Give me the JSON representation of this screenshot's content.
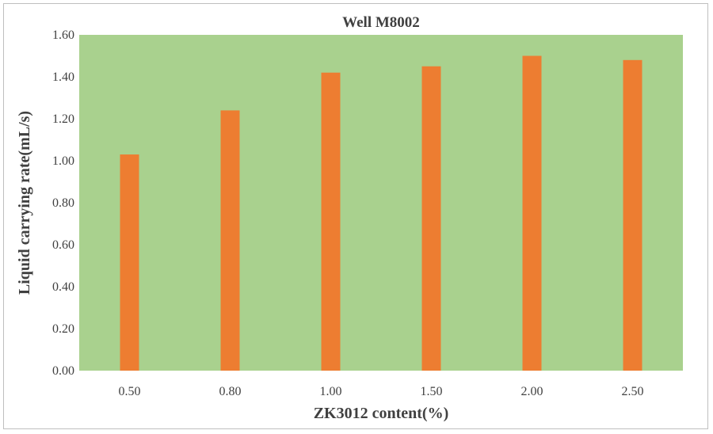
{
  "chart_data": {
    "type": "bar",
    "title": "Well M8002",
    "xlabel": "ZK3012 content(%)",
    "ylabel": "Liquid carrying rate(mL/s)",
    "categories": [
      "0.50",
      "0.80",
      "1.00",
      "1.50",
      "2.00",
      "2.50"
    ],
    "values": [
      1.03,
      1.24,
      1.42,
      1.45,
      1.5,
      1.48
    ],
    "ylim": [
      0,
      1.6
    ],
    "yticks": [
      "0.00",
      "0.20",
      "0.40",
      "0.60",
      "0.80",
      "1.00",
      "1.20",
      "1.40",
      "1.60"
    ],
    "grid": false,
    "legend": "none",
    "colors": {
      "plot_background": "#a9d18e",
      "bar": "#ed7d31",
      "text": "#404040"
    }
  }
}
